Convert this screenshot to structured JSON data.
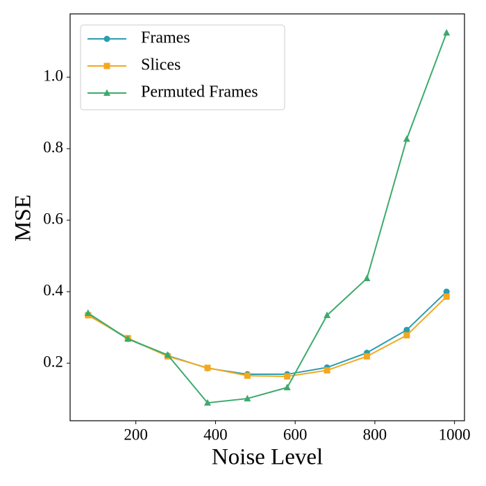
{
  "chart_data": {
    "type": "line",
    "xlabel": "Noise Level",
    "ylabel": "MSE",
    "x": [
      80,
      180,
      280,
      380,
      480,
      580,
      680,
      780,
      880,
      980
    ],
    "series": [
      {
        "name": "Frames",
        "color": "#2a9db0",
        "marker": "circle",
        "values": [
          0.336,
          0.268,
          0.221,
          0.186,
          0.169,
          0.169,
          0.188,
          0.229,
          0.293,
          0.4
        ]
      },
      {
        "name": "Slices",
        "color": "#f4a81d",
        "marker": "square",
        "values": [
          0.334,
          0.27,
          0.219,
          0.187,
          0.165,
          0.163,
          0.18,
          0.219,
          0.278,
          0.386
        ]
      },
      {
        "name": "Permuted Frames",
        "color": "#3caa6b",
        "marker": "triangle",
        "values": [
          0.34,
          0.268,
          0.223,
          0.089,
          0.101,
          0.132,
          0.334,
          0.437,
          0.827,
          1.124
        ]
      }
    ],
    "xlim": [
      35,
      1025
    ],
    "ylim": [
      0.039,
      1.177
    ],
    "xticks": [
      200,
      400,
      600,
      800,
      1000
    ],
    "yticks": [
      0.2,
      0.4,
      0.6,
      0.8,
      {
        "value": 1,
        "label": "1.0"
      }
    ],
    "grid": false,
    "legend": "upper left"
  }
}
